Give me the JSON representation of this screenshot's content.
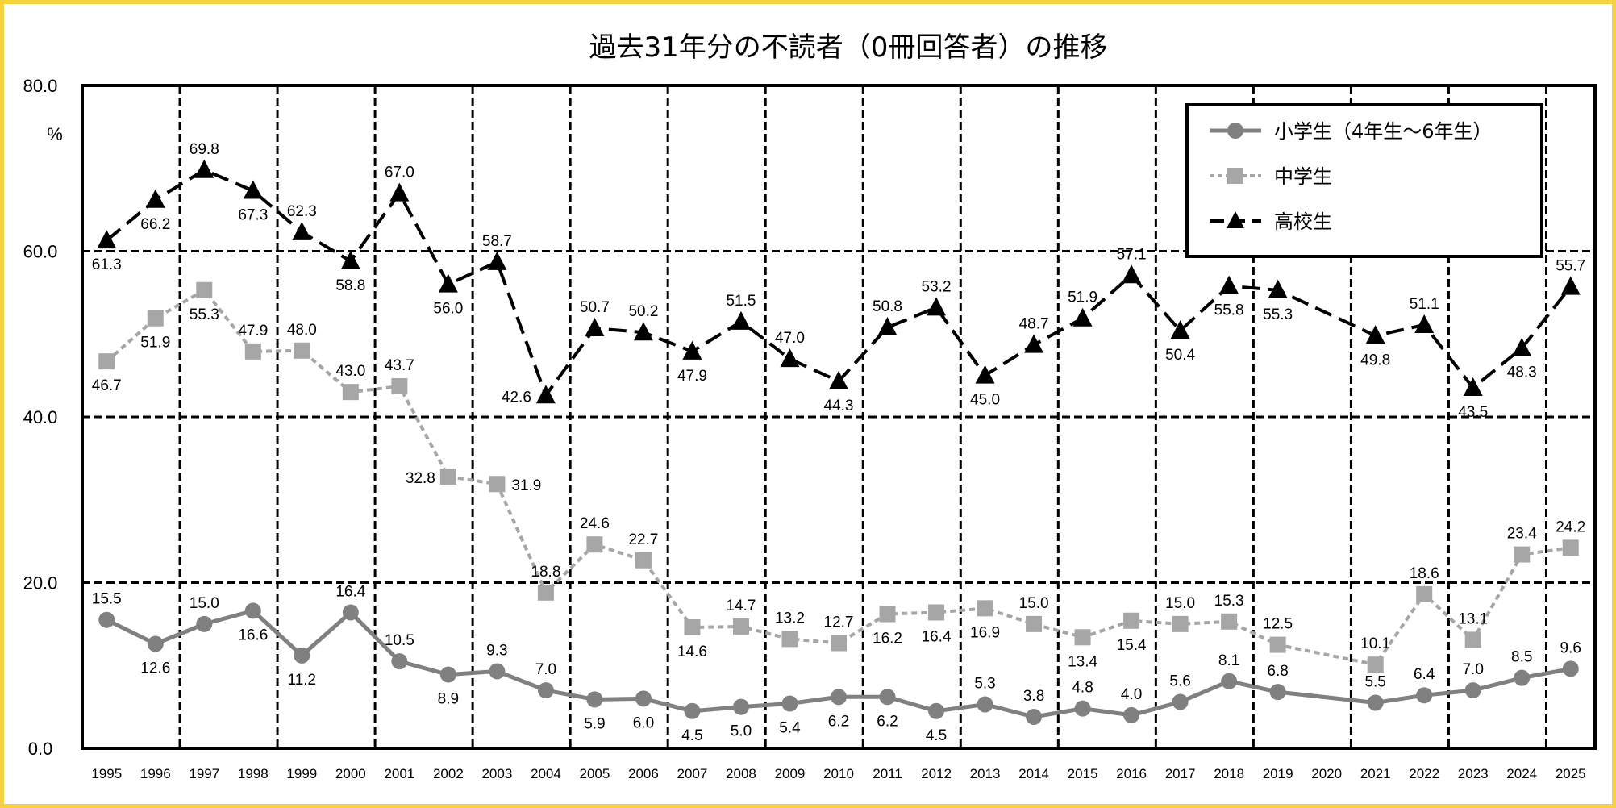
{
  "chart_data": {
    "type": "line",
    "title": "過去31年分の不読者（0冊回答者）の推移",
    "xlabel": "",
    "ylabel": "%",
    "ylim": [
      0,
      80
    ],
    "yticks": [
      "0.0",
      "20.0",
      "40.0",
      "60.0",
      "80.0"
    ],
    "grid": true,
    "legend_position": "upper right",
    "x": [
      "1995",
      "1996",
      "1997",
      "1998",
      "1999",
      "2000",
      "2001",
      "2002",
      "2003",
      "2004",
      "2005",
      "2006",
      "2007",
      "2008",
      "2009",
      "2010",
      "2011",
      "2012",
      "2013",
      "2014",
      "2015",
      "2016",
      "2017",
      "2018",
      "2019",
      "2020",
      "2021",
      "2022",
      "2023",
      "2024",
      "2025"
    ],
    "series": [
      {
        "name": "小学生（4年生～6年生）",
        "color": "#808080",
        "marker": "circle",
        "line_style": "solid",
        "values": [
          15.5,
          12.6,
          15.0,
          16.6,
          11.2,
          16.4,
          10.5,
          8.9,
          9.3,
          7.0,
          5.9,
          6.0,
          4.5,
          5.0,
          5.4,
          6.2,
          6.2,
          4.5,
          5.3,
          3.8,
          4.8,
          4.0,
          5.6,
          8.1,
          6.8,
          null,
          5.5,
          6.4,
          7.0,
          8.5,
          9.6
        ]
      },
      {
        "name": "中学生",
        "color": "#a6a6a6",
        "marker": "square",
        "line_style": "dotted",
        "values": [
          46.7,
          51.9,
          55.3,
          47.9,
          48.0,
          43.0,
          43.7,
          32.8,
          31.9,
          18.8,
          24.6,
          22.7,
          14.6,
          14.7,
          13.2,
          12.7,
          16.2,
          16.4,
          16.9,
          15.0,
          13.4,
          15.4,
          15.0,
          15.3,
          12.5,
          null,
          10.1,
          18.6,
          13.1,
          23.4,
          24.2
        ]
      },
      {
        "name": "高校生",
        "color": "#000000",
        "marker": "triangle",
        "line_style": "dashed",
        "values": [
          61.3,
          66.2,
          69.8,
          67.3,
          62.3,
          58.8,
          67.0,
          56.0,
          58.7,
          42.6,
          50.7,
          50.2,
          47.9,
          51.5,
          47.0,
          44.3,
          50.8,
          53.2,
          45.0,
          48.7,
          51.9,
          57.1,
          50.4,
          55.8,
          55.3,
          null,
          49.8,
          51.1,
          43.5,
          48.3,
          55.7
        ]
      }
    ]
  }
}
